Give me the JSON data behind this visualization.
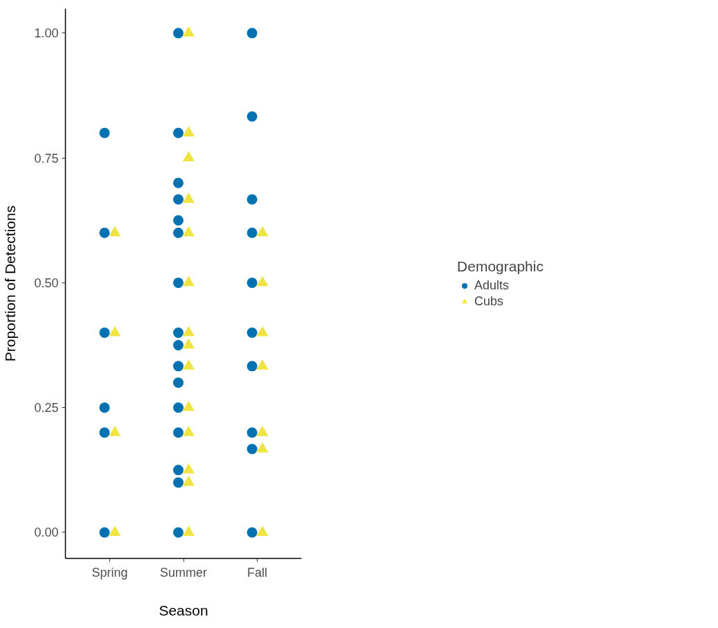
{
  "chart_data": {
    "type": "scatter",
    "xlabel": "Season",
    "ylabel": "Proportion of Detections",
    "legend_title": "Demographic",
    "legend": "right",
    "grid": false,
    "categories": [
      "Spring",
      "Summer",
      "Fall"
    ],
    "ylim": [
      -0.052,
      1.049
    ],
    "yticks": [
      {
        "value": 0,
        "label": "0.00"
      },
      {
        "value": 0.25,
        "label": "0.25"
      },
      {
        "value": 0.5,
        "label": "0.50"
      },
      {
        "value": 0.75,
        "label": "0.75"
      },
      {
        "value": 1,
        "label": "1.00"
      }
    ],
    "series": [
      {
        "name": "Adults",
        "color": "#0072b2",
        "marker": "circle",
        "x": [
          "Spring",
          "Spring",
          "Spring",
          "Spring",
          "Spring",
          "Spring",
          "Summer",
          "Summer",
          "Summer",
          "Summer",
          "Summer",
          "Summer",
          "Summer",
          "Summer",
          "Summer",
          "Summer",
          "Summer",
          "Summer",
          "Summer",
          "Summer",
          "Summer",
          "Summer",
          "Fall",
          "Fall",
          "Fall",
          "Fall",
          "Fall",
          "Fall",
          "Fall",
          "Fall",
          "Fall",
          "Fall"
        ],
        "values": [
          0.8,
          0.6,
          0.4,
          0.25,
          0.2,
          0,
          1,
          0.8,
          0.7,
          0.667,
          0.625,
          0.6,
          0.5,
          0.4,
          0.375,
          0.333,
          0.3,
          0.25,
          0.2,
          0.125,
          0.1,
          0,
          1,
          0.833,
          0.667,
          0.6,
          0.5,
          0.4,
          0.333,
          0.2,
          0.167,
          0
        ]
      },
      {
        "name": "Cubs",
        "color": "#f0e442",
        "marker": "triangle",
        "x": [
          "Spring",
          "Spring",
          "Spring",
          "Spring",
          "Summer",
          "Summer",
          "Summer",
          "Summer",
          "Summer",
          "Summer",
          "Summer",
          "Summer",
          "Summer",
          "Summer",
          "Summer",
          "Summer",
          "Summer",
          "Summer",
          "Fall",
          "Fall",
          "Fall",
          "Fall",
          "Fall",
          "Fall",
          "Fall"
        ],
        "values": [
          0.6,
          0.4,
          0.2,
          0,
          1,
          0.8,
          0.75,
          0.667,
          0.6,
          0.5,
          0.4,
          0.375,
          0.333,
          0.25,
          0.2,
          0.125,
          0.1,
          0,
          0.6,
          0.5,
          0.4,
          0.333,
          0.2,
          0.167,
          0
        ]
      }
    ]
  }
}
